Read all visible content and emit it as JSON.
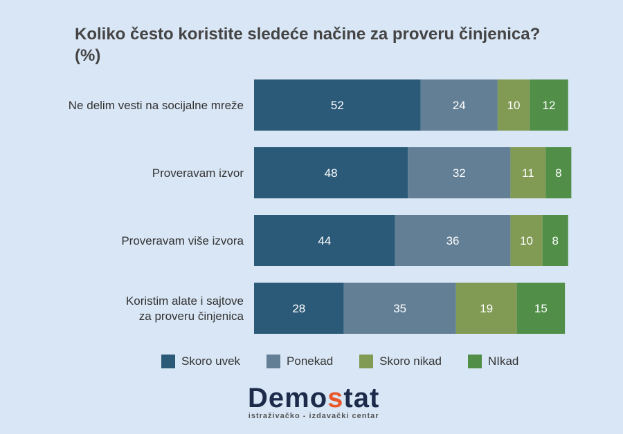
{
  "chart_data": {
    "type": "bar",
    "orientation": "horizontal",
    "stacked": true,
    "title": "Koliko često koristite sledeće načine za proveru činjenica? (%)",
    "categories": [
      "Ne delim vesti na socijalne mreže",
      "Proveravam izvor",
      "Proveravam više izvora",
      "Koristim alate i sajtove za proveru činjenica"
    ],
    "series": [
      {
        "name": "Skoro uvek",
        "color": "#2b5a78",
        "values": [
          52,
          48,
          44,
          28
        ]
      },
      {
        "name": "Ponekad",
        "color": "#637f95",
        "values": [
          24,
          32,
          36,
          35
        ]
      },
      {
        "name": "Skoro nikad",
        "color": "#819b55",
        "values": [
          10,
          11,
          10,
          19
        ]
      },
      {
        "name": "NIkad",
        "color": "#518f48",
        "values": [
          12,
          8,
          8,
          15
        ]
      }
    ],
    "xlim": [
      0,
      100
    ],
    "grid": false,
    "legend": "bottom"
  },
  "logo": {
    "name_a": "Demo",
    "name_b": "s",
    "name_c": "tat",
    "tagline": "istraživačko - izdavački  centar"
  }
}
